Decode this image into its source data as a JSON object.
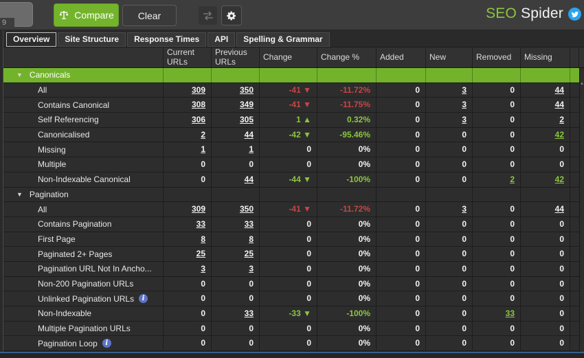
{
  "toolbar": {
    "spinner_value": "9",
    "compare_label": "Compare",
    "clear_label": "Clear",
    "brand_seo": "SEO",
    "brand_spider": "Spider"
  },
  "tabs": [
    {
      "label": "Overview",
      "active": true
    },
    {
      "label": "Site Structure",
      "active": false
    },
    {
      "label": "Response Times",
      "active": false
    },
    {
      "label": "API",
      "active": false
    },
    {
      "label": "Spelling & Grammar",
      "active": false
    }
  ],
  "table": {
    "columns": [
      "",
      "Current URLs",
      "Previous URLs",
      "Change",
      "Change %",
      "Added",
      "New",
      "Removed",
      "Missing"
    ],
    "rows": [
      {
        "type": "group",
        "name": "Canonicals",
        "selected": true,
        "cells": [
          "",
          "",
          "",
          "",
          "",
          "",
          "",
          ""
        ]
      },
      {
        "type": "item",
        "name": "All",
        "cells": [
          {
            "t": "309",
            "c": "link"
          },
          {
            "t": "350",
            "c": "link"
          },
          {
            "t": "-41 ▼",
            "c": "neg"
          },
          {
            "t": "-11.72%",
            "c": "neg"
          },
          "0",
          {
            "t": "3",
            "c": "link"
          },
          "0",
          {
            "t": "44",
            "c": "link"
          }
        ]
      },
      {
        "type": "item",
        "name": "Contains Canonical",
        "cells": [
          {
            "t": "308",
            "c": "link"
          },
          {
            "t": "349",
            "c": "link"
          },
          {
            "t": "-41 ▼",
            "c": "neg"
          },
          {
            "t": "-11.75%",
            "c": "neg"
          },
          "0",
          {
            "t": "3",
            "c": "link"
          },
          "0",
          {
            "t": "44",
            "c": "link"
          }
        ]
      },
      {
        "type": "item",
        "name": "Self Referencing",
        "cells": [
          {
            "t": "306",
            "c": "link"
          },
          {
            "t": "305",
            "c": "link"
          },
          {
            "t": "1 ▲",
            "c": "pos"
          },
          {
            "t": "0.32%",
            "c": "pos"
          },
          "0",
          {
            "t": "3",
            "c": "link"
          },
          "0",
          {
            "t": "2",
            "c": "link"
          }
        ]
      },
      {
        "type": "item",
        "name": "Canonicalised",
        "cells": [
          {
            "t": "2",
            "c": "link"
          },
          {
            "t": "44",
            "c": "link"
          },
          {
            "t": "-42 ▼",
            "c": "pos"
          },
          {
            "t": "-95.46%",
            "c": "pos"
          },
          "0",
          "0",
          "0",
          {
            "t": "42",
            "c": "pos link"
          }
        ]
      },
      {
        "type": "item",
        "name": "Missing",
        "cells": [
          {
            "t": "1",
            "c": "link"
          },
          {
            "t": "1",
            "c": "link"
          },
          "0",
          "0%",
          "0",
          "0",
          "0",
          "0"
        ]
      },
      {
        "type": "item",
        "name": "Multiple",
        "cells": [
          "0",
          "0",
          "0",
          "0%",
          "0",
          "0",
          "0",
          "0"
        ]
      },
      {
        "type": "item",
        "name": "Non-Indexable Canonical",
        "cells": [
          "0",
          {
            "t": "44",
            "c": "link"
          },
          {
            "t": "-44 ▼",
            "c": "pos"
          },
          {
            "t": "-100%",
            "c": "pos"
          },
          "0",
          "0",
          {
            "t": "2",
            "c": "pos link"
          },
          {
            "t": "42",
            "c": "pos link"
          }
        ]
      },
      {
        "type": "group",
        "name": "Pagination",
        "selected": false,
        "cells": [
          "",
          "",
          "",
          "",
          "",
          "",
          "",
          ""
        ]
      },
      {
        "type": "item",
        "name": "All",
        "cells": [
          {
            "t": "309",
            "c": "link"
          },
          {
            "t": "350",
            "c": "link"
          },
          {
            "t": "-41 ▼",
            "c": "neg"
          },
          {
            "t": "-11.72%",
            "c": "neg"
          },
          "0",
          {
            "t": "3",
            "c": "link"
          },
          "0",
          {
            "t": "44",
            "c": "link"
          }
        ]
      },
      {
        "type": "item",
        "name": "Contains Pagination",
        "cells": [
          {
            "t": "33",
            "c": "link"
          },
          {
            "t": "33",
            "c": "link"
          },
          "0",
          "0%",
          "0",
          "0",
          "0",
          "0"
        ]
      },
      {
        "type": "item",
        "name": "First Page",
        "cells": [
          {
            "t": "8",
            "c": "link"
          },
          {
            "t": "8",
            "c": "link"
          },
          "0",
          "0%",
          "0",
          "0",
          "0",
          "0"
        ]
      },
      {
        "type": "item",
        "name": "Paginated 2+ Pages",
        "cells": [
          {
            "t": "25",
            "c": "link"
          },
          {
            "t": "25",
            "c": "link"
          },
          "0",
          "0%",
          "0",
          "0",
          "0",
          "0"
        ]
      },
      {
        "type": "item",
        "name": "Pagination URL Not In Ancho...",
        "cells": [
          {
            "t": "3",
            "c": "link"
          },
          {
            "t": "3",
            "c": "link"
          },
          "0",
          "0%",
          "0",
          "0",
          "0",
          "0"
        ]
      },
      {
        "type": "item",
        "name": "Non-200 Pagination URLs",
        "cells": [
          "0",
          "0",
          "0",
          "0%",
          "0",
          "0",
          "0",
          "0"
        ]
      },
      {
        "type": "item",
        "name": "Unlinked Pagination URLs",
        "info": true,
        "cells": [
          "0",
          "0",
          "0",
          "0%",
          "0",
          "0",
          "0",
          "0"
        ]
      },
      {
        "type": "item",
        "name": "Non-Indexable",
        "cells": [
          "0",
          {
            "t": "33",
            "c": "link"
          },
          {
            "t": "-33 ▼",
            "c": "pos"
          },
          {
            "t": "-100%",
            "c": "pos"
          },
          "0",
          "0",
          {
            "t": "33",
            "c": "pos link"
          },
          "0"
        ]
      },
      {
        "type": "item",
        "name": "Multiple Pagination URLs",
        "cells": [
          "0",
          "0",
          "0",
          "0%",
          "0",
          "0",
          "0",
          "0"
        ]
      },
      {
        "type": "item",
        "name": "Pagination Loop",
        "info": true,
        "cells": [
          "0",
          "0",
          "0",
          "0%",
          "0",
          "0",
          "0",
          "0"
        ]
      }
    ]
  },
  "colors": {
    "accent_green": "#73b32c",
    "positive_green": "#8cc63f",
    "negative_red": "#c94545",
    "brand_green": "#8dc63f",
    "twitter_blue": "#2aa3ef",
    "info_blue": "#5d74c4",
    "status_border_blue": "#35618c"
  }
}
